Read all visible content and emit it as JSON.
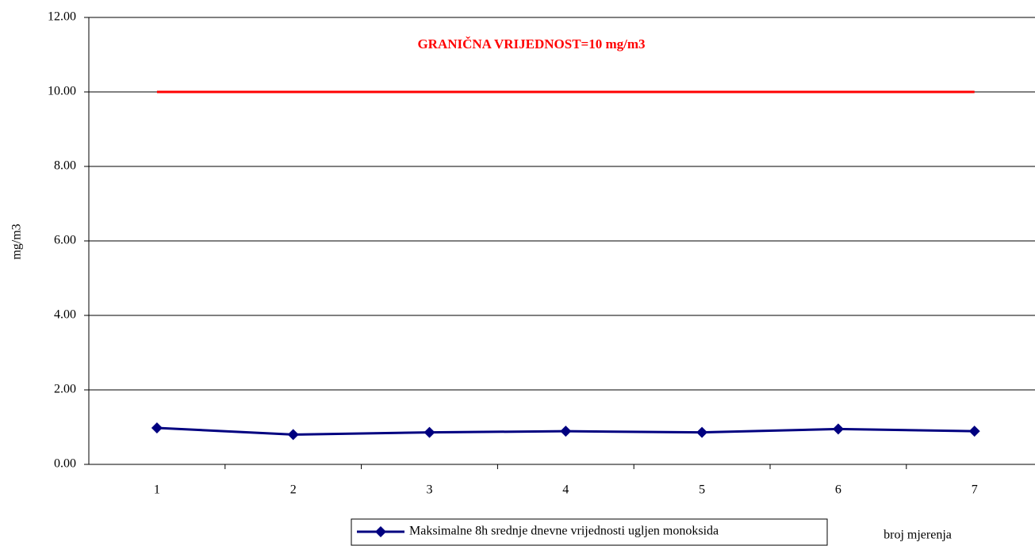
{
  "chart_data": {
    "type": "line",
    "annotation": "GRANIČNA VRIJEDNOST=10 mg/m3",
    "y_label": "mg/m3",
    "x_label": "broj mjerenja",
    "categories": [
      "1",
      "2",
      "3",
      "4",
      "5",
      "6",
      "7"
    ],
    "series": [
      {
        "name": "Maksimalne 8h srednje dnevne vrijednosti ugljen monoksida",
        "color": "#000080",
        "marker": "diamond",
        "values": [
          0.98,
          0.8,
          0.86,
          0.89,
          0.86,
          0.95,
          0.89
        ]
      },
      {
        "color": "#ff0000",
        "values": [
          10,
          10,
          10,
          10,
          10,
          10,
          10
        ]
      }
    ],
    "ylim": [
      0,
      12
    ],
    "yticks": [
      {
        "value": 0,
        "label": "0.00"
      },
      {
        "value": 2,
        "label": "2.00"
      },
      {
        "value": 4,
        "label": "4.00"
      },
      {
        "value": 6,
        "label": "6.00"
      },
      {
        "value": 8,
        "label": "8.00"
      },
      {
        "value": 10,
        "label": "10.00"
      },
      {
        "value": 12,
        "label": "12.00"
      }
    ],
    "grid": true,
    "legend": "bottom"
  }
}
